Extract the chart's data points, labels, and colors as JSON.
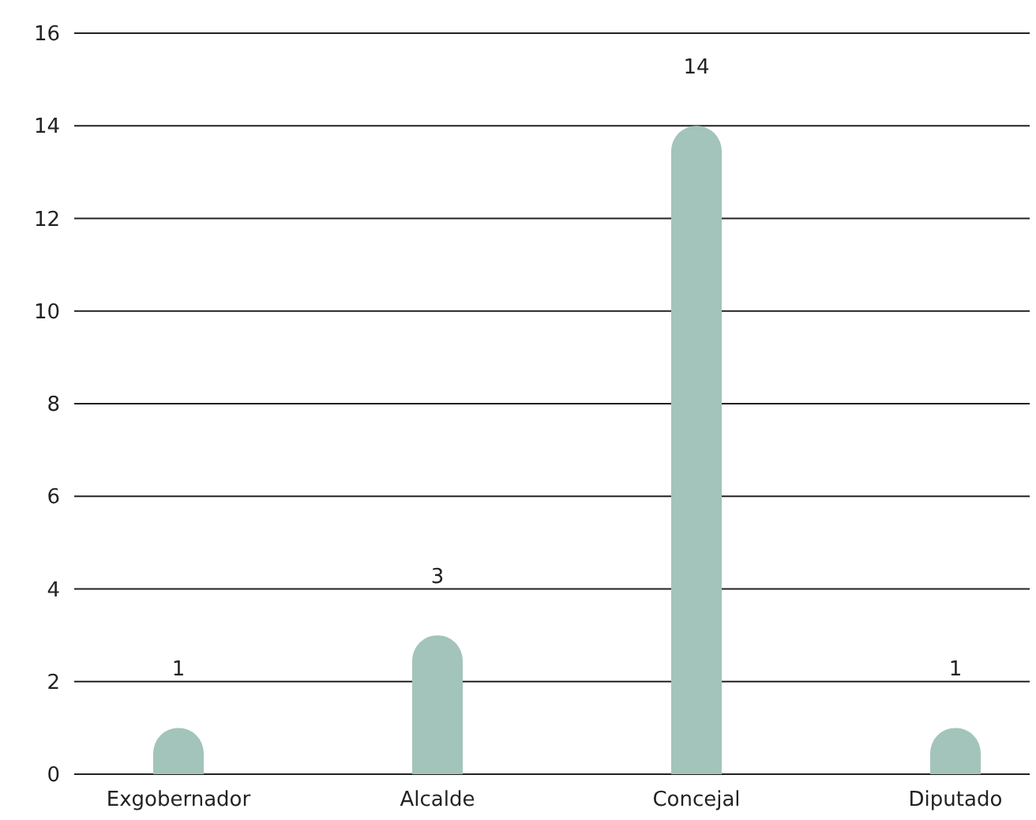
{
  "chart_data": {
    "type": "bar",
    "categories": [
      "Exgobernador",
      "Alcalde",
      "Concejal",
      "Diputado"
    ],
    "values": [
      1,
      3,
      14,
      1
    ],
    "color": "#a3c4ba",
    "ylim": [
      0,
      16
    ],
    "yticks": [
      0,
      2,
      4,
      6,
      8,
      10,
      12,
      14,
      16
    ],
    "grid": "y",
    "data_labels": true
  }
}
